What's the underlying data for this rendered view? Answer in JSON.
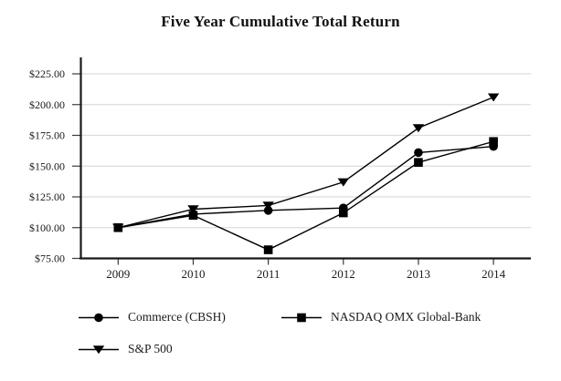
{
  "page": {
    "background": "#ffffff"
  },
  "chart_data": {
    "type": "line",
    "title": "Five Year Cumulative Total Return",
    "categories": [
      "2009",
      "2010",
      "2011",
      "2012",
      "2013",
      "2014"
    ],
    "series": [
      {
        "name": "Commerce (CBSH)",
        "marker": "circle",
        "values": [
          100,
          111,
          114,
          116,
          161,
          166
        ]
      },
      {
        "name": "S&P 500",
        "marker": "triangle-down",
        "values": [
          100,
          115,
          118,
          137,
          181,
          206
        ]
      },
      {
        "name": "NASDAQ OMX Global-Bank",
        "marker": "square",
        "values": [
          100,
          110,
          82,
          112,
          153,
          170
        ]
      }
    ],
    "xlabel": "",
    "ylabel": "",
    "x_axis": {
      "tick_labels": [
        "2009",
        "2010",
        "2011",
        "2012",
        "2013",
        "2014"
      ]
    },
    "y_axis": {
      "min": 75,
      "max": 225,
      "step": 25,
      "tick_labels": [
        "$75.00",
        "$100.00",
        "$125.00",
        "$150.00",
        "$175.00",
        "$200.00",
        "$225.00"
      ]
    },
    "grid": true,
    "legend_position": "bottom-left",
    "legend_order": [
      "Commerce (CBSH)",
      "NASDAQ OMX Global-Bank",
      "S&P 500"
    ],
    "colors": {
      "series_line": "#000000",
      "marker_fill": "#000000",
      "grid_line": "#dcdcdc",
      "axis_line": "#1a1a1a",
      "tick_mark": "#3a3a3a",
      "text": "#1a1a1a"
    }
  }
}
